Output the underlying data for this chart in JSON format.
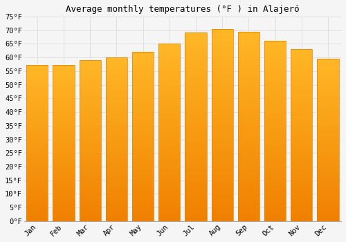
{
  "title": "Average monthly temperatures (°F ) in Alajeró",
  "months": [
    "Jan",
    "Feb",
    "Mar",
    "Apr",
    "May",
    "Jun",
    "Jul",
    "Aug",
    "Sep",
    "Oct",
    "Nov",
    "Dec"
  ],
  "values": [
    57.2,
    57.2,
    59.0,
    60.0,
    62.1,
    65.1,
    69.1,
    70.3,
    69.3,
    66.2,
    63.0,
    59.5
  ],
  "bar_color_top": "#FFB726",
  "bar_color_bottom": "#F08000",
  "bar_edge_color": "#E08000",
  "ylim": [
    0,
    75
  ],
  "yticks": [
    0,
    5,
    10,
    15,
    20,
    25,
    30,
    35,
    40,
    45,
    50,
    55,
    60,
    65,
    70,
    75
  ],
  "background_color": "#f5f5f5",
  "grid_color": "#dddddd",
  "title_fontsize": 9,
  "tick_fontsize": 7.5,
  "font_family": "monospace",
  "bar_width": 0.82
}
